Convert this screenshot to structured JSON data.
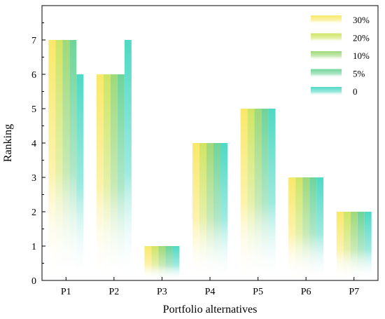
{
  "chart_data": {
    "type": "bar",
    "xlabel": "Portfolio alternatives",
    "ylabel": "Ranking",
    "categories": [
      "P1",
      "P2",
      "P3",
      "P4",
      "P5",
      "P6",
      "P7"
    ],
    "ylim": [
      0,
      8
    ],
    "yticks": [
      0,
      1,
      2,
      3,
      4,
      5,
      6,
      7
    ],
    "grid": false,
    "legend_position": "top-right",
    "series": [
      {
        "name": "30%",
        "values": [
          7,
          6,
          1,
          4,
          5,
          3,
          2
        ],
        "color": "#f9e86a"
      },
      {
        "name": "20%",
        "values": [
          7,
          6,
          1,
          4,
          5,
          3,
          2
        ],
        "color": "#cfe565"
      },
      {
        "name": "10%",
        "values": [
          7,
          6,
          1,
          4,
          5,
          3,
          2
        ],
        "color": "#9ed97a"
      },
      {
        "name": "5%",
        "values": [
          7,
          6,
          1,
          4,
          5,
          3,
          2
        ],
        "color": "#6fd49a"
      },
      {
        "name": "0",
        "values": [
          6,
          7,
          1,
          4,
          5,
          3,
          2
        ],
        "color": "#4fd9c4"
      }
    ]
  }
}
